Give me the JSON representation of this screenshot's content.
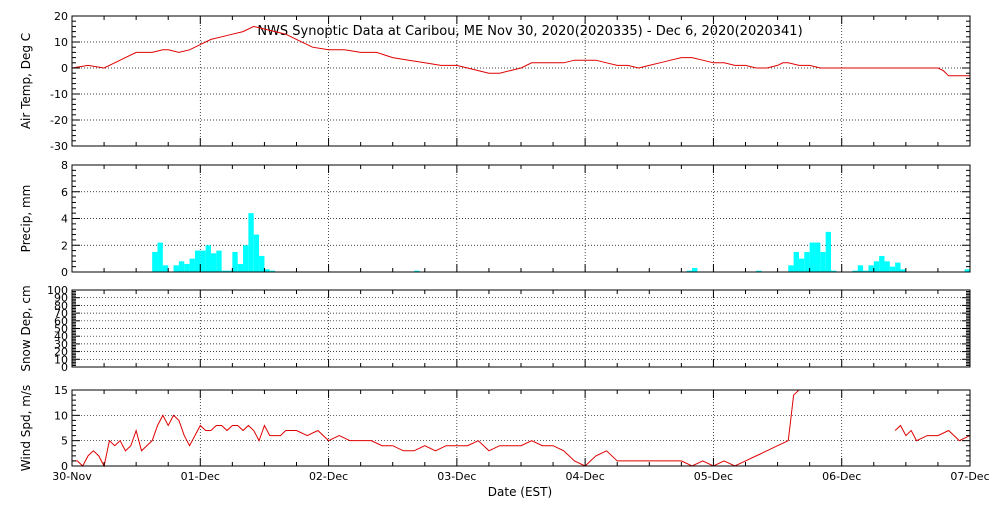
{
  "title": "NWS Synoptic Data at Caribou, ME   Nov 30, 2020(2020335) - Dec  6, 2020(2020341)",
  "xlabel": "Date (EST)",
  "x_tick_labels": [
    "30-Nov",
    "01-Dec",
    "02-Dec",
    "03-Dec",
    "04-Dec",
    "05-Dec",
    "06-Dec",
    "07-Dec"
  ],
  "colors": {
    "line": "#e00000",
    "bar": "#00ffff",
    "axis": "#000000",
    "grid": "#000000"
  },
  "chart_data": [
    {
      "type": "line",
      "ylabel": "Air Temp, Deg C",
      "ylim": [
        -30,
        20
      ],
      "y_ticks": [
        -30,
        -20,
        -10,
        0,
        10,
        20
      ],
      "grid": true,
      "x_unit": "hours since 30-Nov 00:00",
      "series": [
        {
          "x": [
            0,
            3,
            6,
            9,
            12,
            15,
            17,
            18,
            20,
            22,
            24,
            26,
            28,
            30,
            32,
            34,
            36,
            38,
            40,
            42,
            45,
            48,
            51,
            54,
            57,
            60,
            63,
            66,
            69,
            72,
            74,
            76,
            78,
            80,
            82,
            84,
            86,
            88,
            90,
            92,
            94,
            96,
            98,
            100,
            102,
            104,
            106,
            108,
            110,
            112,
            114,
            116,
            118,
            120,
            122,
            124,
            126,
            128,
            130,
            132,
            133,
            134,
            136,
            138,
            140,
            142,
            144,
            146,
            148,
            150,
            152,
            154,
            156,
            158,
            160,
            162,
            163,
            164,
            166,
            168
          ],
          "values": [
            0,
            1,
            0,
            3,
            6,
            6,
            7,
            7,
            6,
            7,
            9,
            11,
            12,
            13,
            14,
            16,
            15,
            14,
            13,
            11,
            8,
            7,
            7,
            6,
            6,
            4,
            3,
            2,
            1,
            1,
            0,
            -1,
            -2,
            -2,
            -1,
            0,
            2,
            2,
            2,
            2,
            3,
            3,
            3,
            2,
            1,
            1,
            0,
            1,
            2,
            3,
            4,
            4,
            3,
            2,
            2,
            1,
            1,
            0,
            0,
            1,
            2,
            2,
            1,
            1,
            0,
            0,
            0,
            0,
            0,
            0,
            0,
            0,
            0,
            0,
            0,
            0,
            -1,
            -3,
            -3,
            -3
          ]
        }
      ]
    },
    {
      "type": "bar",
      "ylabel": "Precip, mm",
      "ylim": [
        0,
        8
      ],
      "y_ticks": [
        0,
        2,
        4,
        6,
        8
      ],
      "grid": true,
      "x_unit": "hours since 30-Nov 00:00",
      "bar_width_hours": 1,
      "bars": [
        {
          "x": 15,
          "value": 1.5
        },
        {
          "x": 16,
          "value": 2.2
        },
        {
          "x": 17,
          "value": 0.5
        },
        {
          "x": 19,
          "value": 0.5
        },
        {
          "x": 20,
          "value": 0.8
        },
        {
          "x": 21,
          "value": 0.6
        },
        {
          "x": 22,
          "value": 1.0
        },
        {
          "x": 23,
          "value": 1.6
        },
        {
          "x": 24,
          "value": 1.6
        },
        {
          "x": 25,
          "value": 2.0
        },
        {
          "x": 26,
          "value": 1.4
        },
        {
          "x": 27,
          "value": 1.6
        },
        {
          "x": 28,
          "value": 0.1
        },
        {
          "x": 29,
          "value": 0.1
        },
        {
          "x": 30,
          "value": 1.5
        },
        {
          "x": 31,
          "value": 0.6
        },
        {
          "x": 32,
          "value": 2.0
        },
        {
          "x": 33,
          "value": 4.4
        },
        {
          "x": 34,
          "value": 2.8
        },
        {
          "x": 35,
          "value": 1.2
        },
        {
          "x": 36,
          "value": 0.2
        },
        {
          "x": 37,
          "value": 0.1
        },
        {
          "x": 64,
          "value": 0.1
        },
        {
          "x": 115,
          "value": 0.1
        },
        {
          "x": 116,
          "value": 0.3
        },
        {
          "x": 128,
          "value": 0.1
        },
        {
          "x": 134,
          "value": 0.5
        },
        {
          "x": 135,
          "value": 1.5
        },
        {
          "x": 136,
          "value": 1.0
        },
        {
          "x": 137,
          "value": 1.5
        },
        {
          "x": 138,
          "value": 2.2
        },
        {
          "x": 139,
          "value": 2.2
        },
        {
          "x": 140,
          "value": 1.5
        },
        {
          "x": 141,
          "value": 3.0
        },
        {
          "x": 142,
          "value": 0.1
        },
        {
          "x": 146,
          "value": 0.1
        },
        {
          "x": 147,
          "value": 0.5
        },
        {
          "x": 148,
          "value": 0.1
        },
        {
          "x": 149,
          "value": 0.5
        },
        {
          "x": 150,
          "value": 0.8
        },
        {
          "x": 151,
          "value": 1.2
        },
        {
          "x": 152,
          "value": 0.8
        },
        {
          "x": 153,
          "value": 0.4
        },
        {
          "x": 154,
          "value": 0.7
        },
        {
          "x": 155,
          "value": 0.2
        },
        {
          "x": 167,
          "value": 0.2
        }
      ]
    },
    {
      "type": "line",
      "ylabel": "Snow Dep, cm",
      "ylim": [
        0,
        100
      ],
      "y_ticks": [
        0,
        10,
        20,
        30,
        40,
        50,
        60,
        70,
        80,
        90,
        100
      ],
      "grid": true,
      "series": []
    },
    {
      "type": "line",
      "ylabel": "Wind Spd, m/s",
      "ylim": [
        0,
        15
      ],
      "y_ticks": [
        0,
        5,
        10,
        15
      ],
      "grid": true,
      "x_unit": "hours since 30-Nov 00:00",
      "series": [
        {
          "segments": [
            {
              "x": [
                0,
                1,
                2,
                3,
                4,
                5,
                6,
                7,
                8,
                9,
                10,
                11,
                12,
                13,
                14,
                15,
                16,
                17,
                18,
                19,
                20,
                21,
                22,
                23,
                24,
                25,
                26,
                27,
                28,
                29,
                30,
                31,
                32,
                33,
                34,
                35,
                36,
                37,
                38,
                39,
                40,
                42,
                44,
                46,
                48,
                50,
                52,
                54,
                56,
                58,
                60,
                62,
                64,
                66,
                68,
                70,
                72,
                74,
                76,
                78,
                80,
                82,
                84,
                86,
                88,
                90,
                92,
                94,
                96,
                98,
                100,
                102,
                104,
                106,
                108,
                110,
                112,
                114,
                116,
                118,
                120,
                122,
                124,
                126,
                128,
                130,
                132,
                134,
                135,
                136
              ],
              "values": [
                1,
                1,
                0,
                2,
                3,
                2,
                0,
                5,
                4,
                5,
                3,
                4,
                7,
                3,
                4,
                5,
                8,
                10,
                8,
                10,
                9,
                6,
                4,
                6,
                8,
                7,
                7,
                8,
                8,
                7,
                8,
                8,
                7,
                8,
                7,
                5,
                8,
                6,
                6,
                6,
                7,
                7,
                6,
                7,
                5,
                6,
                5,
                5,
                5,
                4,
                4,
                3,
                3,
                4,
                3,
                4,
                4,
                4,
                5,
                3,
                4,
                4,
                4,
                5,
                4,
                4,
                3,
                1,
                0,
                2,
                3,
                1,
                1,
                1,
                1,
                1,
                1,
                1,
                0,
                1,
                0,
                1,
                0,
                1,
                2,
                3,
                4,
                5,
                14,
                15
              ]
            },
            {
              "x": [
                154,
                155,
                156,
                157,
                158,
                160,
                162,
                164,
                166,
                168
              ],
              "values": [
                7,
                8,
                6,
                7,
                5,
                6,
                6,
                7,
                5,
                6
              ]
            }
          ]
        }
      ]
    }
  ]
}
